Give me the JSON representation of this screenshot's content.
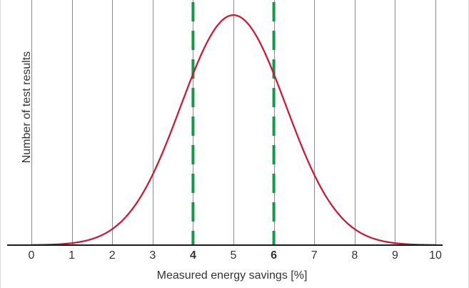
{
  "chart_data": {
    "type": "line",
    "xlabel": "Measured energy savings [%]",
    "ylabel": "Number of test results",
    "xlim": [
      0,
      10
    ],
    "ylim": [
      0,
      1.05
    ],
    "x_ticks": [
      "0",
      "1",
      "2",
      "3",
      "4",
      "5",
      "6",
      "7",
      "8",
      "9",
      "10"
    ],
    "highlighted_ticks": [
      "4",
      "6"
    ],
    "grid": "vertical",
    "series": [
      {
        "type": "normal-distribution-curve",
        "mean": 5,
        "std": 1.3,
        "peak": 1.0,
        "color": "#d2122e"
      }
    ],
    "markers": [
      {
        "x": 4,
        "style": "dashed",
        "color": "#119a48"
      },
      {
        "x": 6,
        "style": "dashed",
        "color": "#119a48"
      }
    ]
  }
}
